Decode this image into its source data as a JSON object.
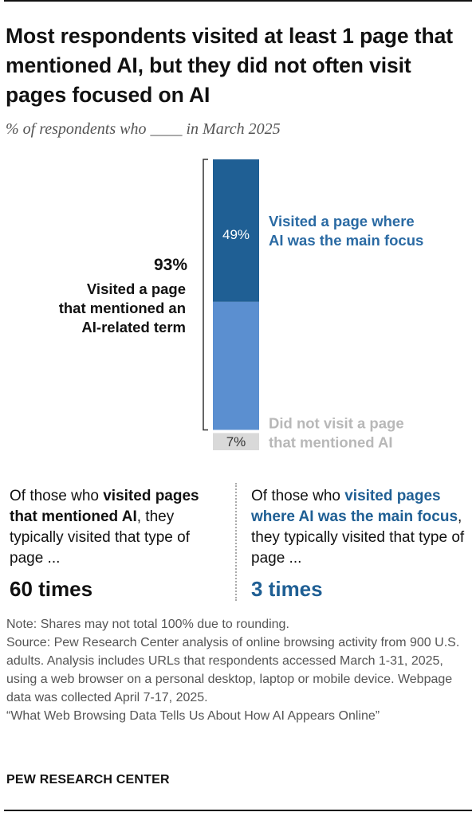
{
  "title": "Most respondents visited at least 1 page that mentioned AI, but they did not often visit pages focused on AI",
  "subtitle": "% of respondents who ____ in March 2025",
  "chart_data": {
    "type": "bar",
    "stacked": true,
    "segments": [
      {
        "label": "Visited a page where AI was the main focus",
        "value": 49,
        "value_label": "49%",
        "color": "#1f5f94",
        "label_color": "#2a6aa3"
      },
      {
        "label": "",
        "value": 44,
        "value_label": "",
        "color": "#5b8fd0"
      },
      {
        "label": "Did not visit a page that mentioned AI",
        "value": 7,
        "value_label": "7%",
        "color": "#d9d9d9",
        "label_color": "#b8b8b8"
      }
    ],
    "bracket": {
      "value": 93,
      "value_label": "93%",
      "label": "Visited a page that mentioned an AI-related term"
    }
  },
  "left_panel": {
    "text_before": "Of those who ",
    "text_bold": "visited pages that mentioned AI",
    "text_after": ", they typically visited that type of page ...",
    "stat": "60 times"
  },
  "right_panel": {
    "text_before": "Of those who ",
    "text_bold": "visited pages where AI was the main focus",
    "text_after": ", they typically visited that type of page ...",
    "stat": "3 times",
    "accent": "#1f5f94"
  },
  "notes": {
    "line1": "Note: Shares may not total 100% due to rounding.",
    "line2": "Source: Pew Research Center analysis of online browsing activity from 900 U.S. adults. Analysis includes URLs that respondents accessed March 1-31, 2025, using a web browser on a personal desktop, laptop or mobile device. Webpage data was collected April 7-17, 2025.",
    "line3": "“What Web Browsing Data Tells Us About How AI Appears Online”"
  },
  "brand": "PEW RESEARCH CENTER"
}
